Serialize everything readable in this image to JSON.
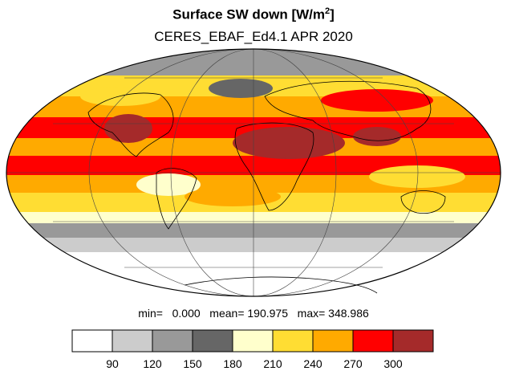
{
  "title": {
    "prefix": "Surface SW down [W/m",
    "sup": "2",
    "suffix": "]"
  },
  "subtitle": "CERES_EBAF_Ed4.1 APR 2020",
  "stats": "min=   0.000   mean= 190.975   max= 348.986",
  "colorbar": {
    "colors": [
      "#ffffff",
      "#cccccc",
      "#999999",
      "#666666",
      "#ffffcc",
      "#ffdd33",
      "#ffaa00",
      "#ff0000",
      "#a52a2a"
    ],
    "tick_labels": [
      "90",
      "120",
      "150",
      "180",
      "210",
      "240",
      "270",
      "300"
    ]
  },
  "map": {
    "projection": "Mollweide",
    "ocean_border": "#000000"
  }
}
